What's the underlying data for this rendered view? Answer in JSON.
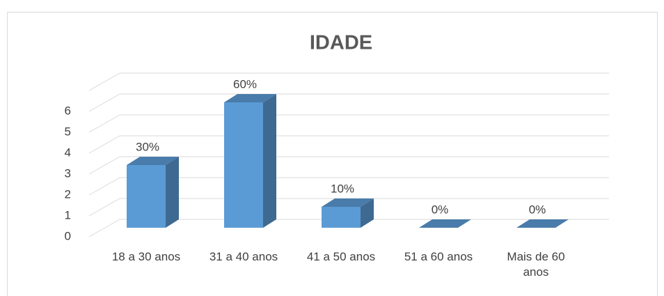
{
  "chart_data": {
    "type": "bar3d",
    "title": "IDADE",
    "categories": [
      "18 a 30 anos",
      "31 a 40 anos",
      "41 a 50 anos",
      "51 a 60 anos",
      "Mais de 60 anos"
    ],
    "values": [
      3,
      6,
      1,
      0,
      0
    ],
    "value_labels": [
      "30%",
      "60%",
      "10%",
      "0%",
      "0%"
    ],
    "color": "#5b9bd5",
    "ylim": [
      0,
      7
    ],
    "yticks": [
      0,
      1,
      2,
      3,
      4,
      5,
      6
    ],
    "grid": true
  }
}
